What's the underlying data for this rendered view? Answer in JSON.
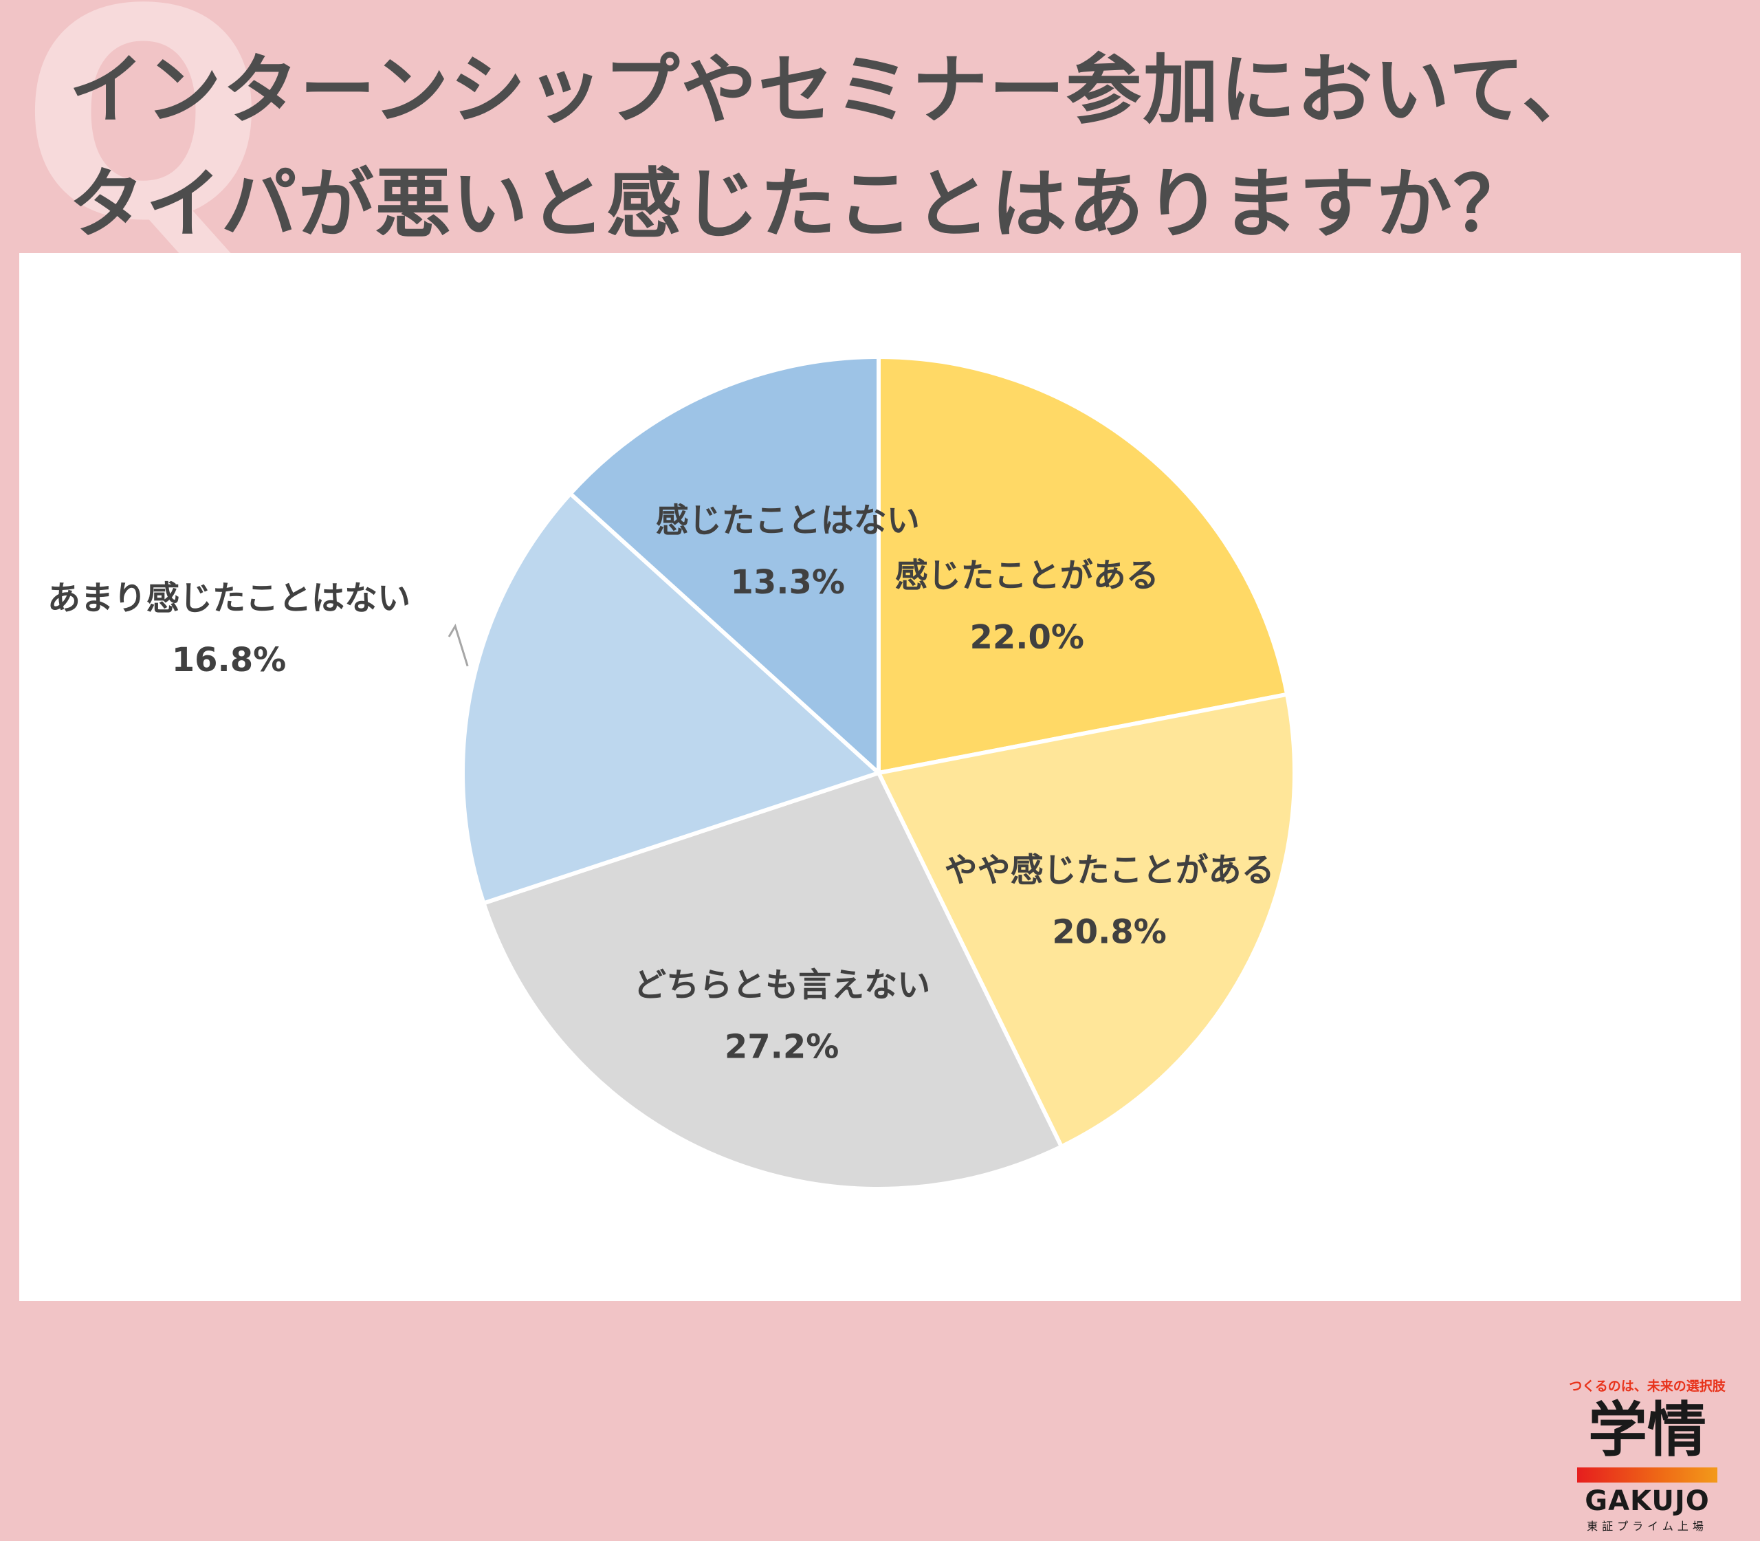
{
  "q_mark": "Q",
  "title_lines": [
    "インターンシップやセミナー参加において、",
    "タイパが悪いと感じたことはありますか？"
  ],
  "chart_data": {
    "type": "pie",
    "start": "12 o'clock, clockwise",
    "slices": [
      {
        "label": "感じたことがある",
        "value": 22.0,
        "display": "22.0%",
        "color": "#ffd966"
      },
      {
        "label": "やや感じたことがある",
        "value": 20.8,
        "display": "20.8%",
        "color": "#ffe699"
      },
      {
        "label": "どちらとも言えない",
        "value": 27.2,
        "display": "27.2%",
        "color": "#d9d9d9"
      },
      {
        "label": "あまり感じたことはない",
        "value": 16.8,
        "display": "16.8%",
        "color": "#bdd7ee"
      },
      {
        "label": "感じたことはない",
        "value": 13.3,
        "display": "13.3%",
        "color": "#9dc3e6"
      }
    ]
  },
  "logo": {
    "tagline": "つくるのは、未来の選択肢",
    "kanji": "学情",
    "romaji": "GAKUJO",
    "sub": "東証プライム上場"
  }
}
